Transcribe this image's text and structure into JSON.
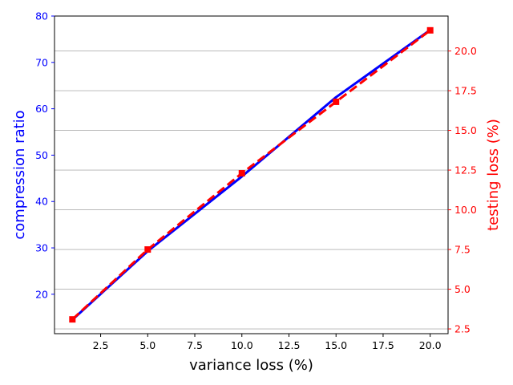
{
  "chart_data": {
    "type": "line",
    "title": "",
    "xlabel": "variance loss (%)",
    "ylabel_left": "compression ratio",
    "ylabel_right": "testing loss (%)",
    "xlim": [
      0.05,
      20.95
    ],
    "ylim_left": [
      11.5,
      80
    ],
    "ylim_right": [
      2.2,
      22.2
    ],
    "x_ticks": [
      2.5,
      5.0,
      7.5,
      10.0,
      12.5,
      15.0,
      17.5,
      20.0
    ],
    "y_left_ticks": [
      20,
      30,
      40,
      50,
      60,
      70,
      80
    ],
    "y_right_ticks": [
      2.5,
      5.0,
      7.5,
      10.0,
      12.5,
      15.0,
      17.5,
      20.0
    ],
    "grid": "horizontal-right-axis",
    "series": [
      {
        "axis": "left",
        "color": "#0000ff",
        "style": "solid",
        "x": [
          1,
          5,
          10,
          15,
          20
        ],
        "values": [
          14.5,
          29.3,
          45.4,
          62.5,
          77.0
        ]
      },
      {
        "axis": "right",
        "color": "#ff0000",
        "style": "dashed",
        "marker": "square",
        "x": [
          1,
          5,
          10,
          15,
          20
        ],
        "values": [
          3.1,
          7.5,
          12.3,
          16.8,
          21.3
        ]
      }
    ]
  }
}
